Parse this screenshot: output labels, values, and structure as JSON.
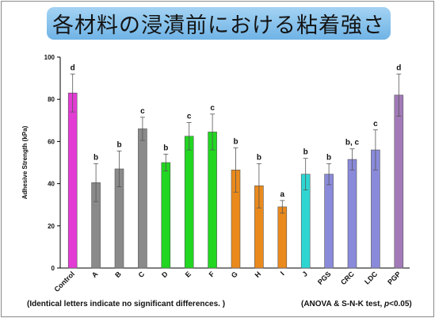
{
  "title": "各材料の浸漬前における粘着強さ",
  "colors": {
    "magenta": "#e23cd4",
    "gray": "#8a8a8a",
    "green": "#22d622",
    "orange": "#ea8a1c",
    "cyan": "#2ed6d2",
    "lavender": "#8a8adb",
    "purple": "#a27ab8"
  },
  "chart_data": {
    "type": "bar",
    "ylabel": "Adhesive Strength (kPa)",
    "ylim": [
      0,
      100
    ],
    "yticks": [
      "0",
      "20",
      "40",
      "60",
      "80",
      "100"
    ],
    "categories": [
      "Control",
      "A",
      "B",
      "C",
      "D",
      "E",
      "F",
      "G",
      "H",
      "I",
      "J",
      "PGS",
      "CRC",
      "LDC",
      "PGP"
    ],
    "values": [
      83,
      40.5,
      47,
      66,
      50,
      62.5,
      64.5,
      46.5,
      39,
      29,
      44.5,
      44.5,
      51.5,
      56,
      82
    ],
    "errors": [
      9,
      9,
      8.5,
      5.5,
      4,
      6.5,
      8.5,
      10.5,
      10.5,
      3,
      7.5,
      5,
      5,
      9.5,
      10
    ],
    "letters": [
      "d",
      "b",
      "b",
      "c",
      "b",
      "c",
      "c",
      "b",
      "b",
      "a",
      "b",
      "b",
      "b, c",
      "c",
      "d"
    ],
    "bar_colors": [
      "magenta",
      "gray",
      "gray",
      "gray",
      "green",
      "green",
      "green",
      "orange",
      "orange",
      "orange",
      "cyan",
      "lavender",
      "lavender",
      "lavender",
      "purple"
    ],
    "grid": false,
    "legend": "none"
  },
  "footnote": {
    "note": "(Identical letters indicate no significant differences. )",
    "stats_prefix": "(ANOVA & S-N-K test, ",
    "stats_p": "p",
    "stats_suffix": "<0.05)"
  }
}
